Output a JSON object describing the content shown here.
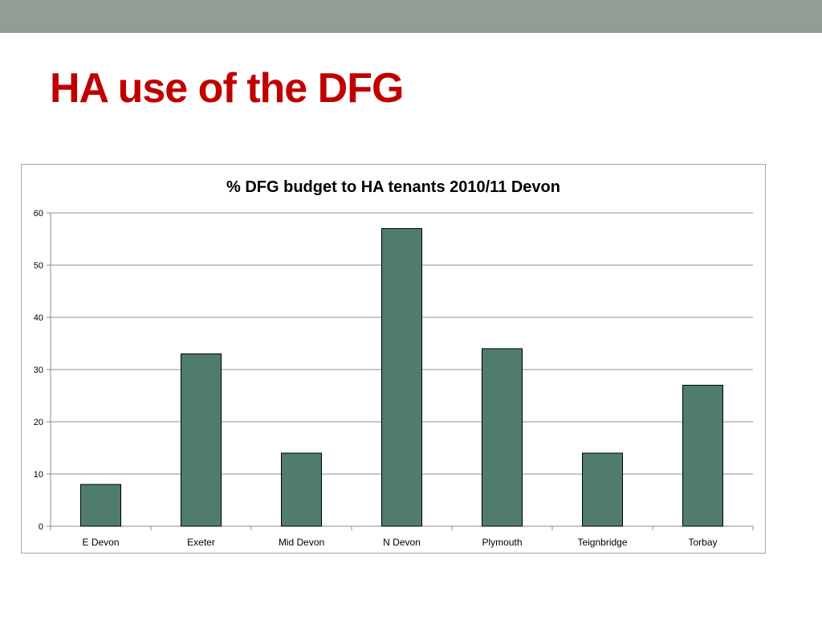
{
  "slide": {
    "title": "HA use of the DFG",
    "band_color": "#919e96",
    "title_color": "#c00000"
  },
  "chart_data": {
    "type": "bar",
    "title": "%  DFG budget to HA tenants 2010/11 Devon",
    "categories": [
      "E Devon",
      "Exeter",
      "Mid Devon",
      "N Devon",
      "Plymouth",
      "Teignbridge",
      "Torbay"
    ],
    "values": [
      8,
      33,
      14,
      57,
      34,
      14,
      27
    ],
    "ylim": [
      0,
      60
    ],
    "yticks": [
      0,
      10,
      20,
      30,
      40,
      50,
      60
    ],
    "xlabel": "",
    "ylabel": "",
    "grid": true,
    "legend": "none",
    "bar_color": "#507c70"
  }
}
